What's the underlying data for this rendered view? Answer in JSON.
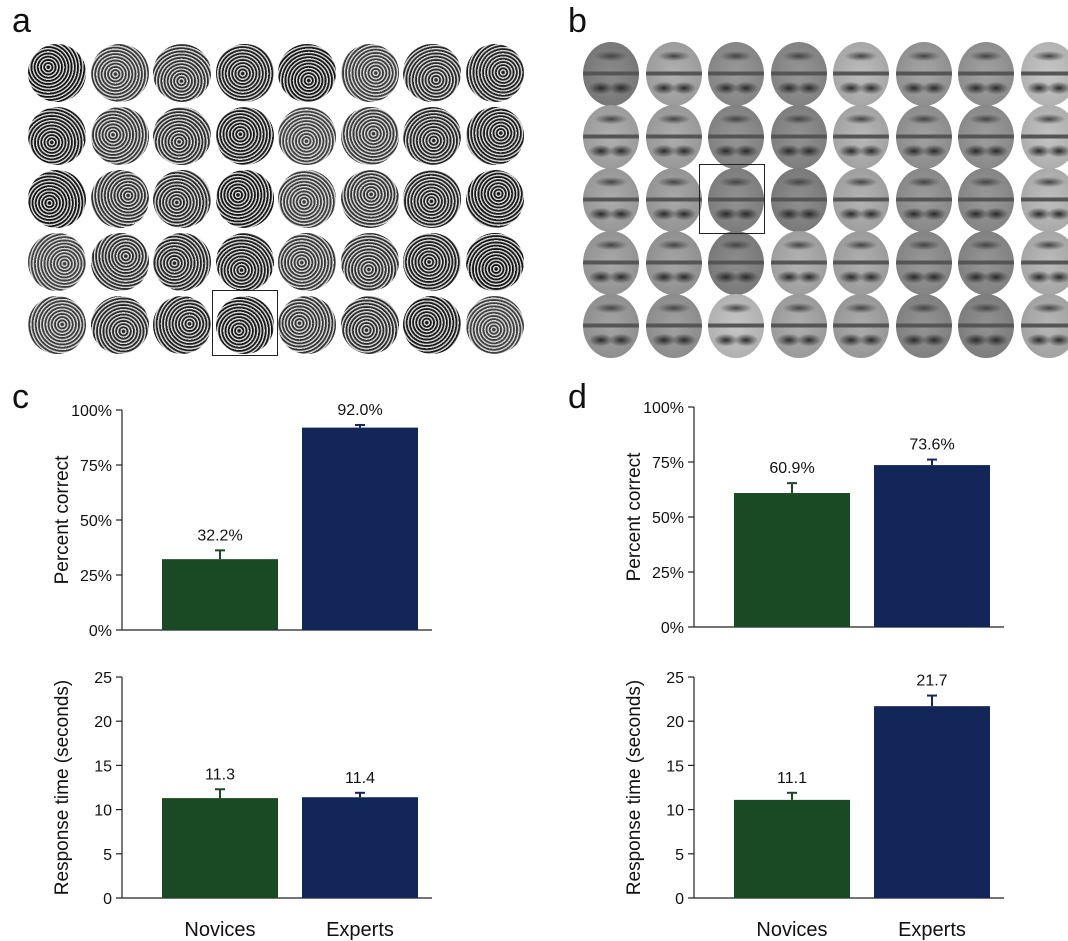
{
  "panels": {
    "a": {
      "letter": "a",
      "rows": 5,
      "cols": 8,
      "selected": {
        "row": 4,
        "col": 3
      }
    },
    "b": {
      "letter": "b",
      "rows": 5,
      "cols": 8,
      "selected": {
        "row": 2,
        "col": 2
      }
    },
    "c": {
      "letter": "c"
    },
    "d": {
      "letter": "d"
    }
  },
  "colors": {
    "novices": "#1a4a24",
    "experts": "#13265a"
  },
  "chart_data": [
    {
      "id": "c-top",
      "type": "bar",
      "categories": [
        "Novices",
        "Experts"
      ],
      "values": [
        32.2,
        92.0
      ],
      "errors": [
        4.0,
        1.2
      ],
      "labels": [
        "32.2%",
        "92.0%"
      ],
      "ylabel": "Percent correct",
      "yticks": [
        "0%",
        "25%",
        "50%",
        "75%",
        "100%"
      ],
      "ylim": [
        0,
        100
      ],
      "show_categories": false
    },
    {
      "id": "c-bottom",
      "type": "bar",
      "categories": [
        "Novices",
        "Experts"
      ],
      "values": [
        11.3,
        11.4
      ],
      "errors": [
        1.0,
        0.5
      ],
      "labels": [
        "11.3",
        "11.4"
      ],
      "ylabel": "Response time (seconds)",
      "yticks": [
        "0",
        "5",
        "10",
        "15",
        "20",
        "25"
      ],
      "ylim": [
        0,
        25
      ],
      "show_categories": true
    },
    {
      "id": "d-top",
      "type": "bar",
      "categories": [
        "Novices",
        "Experts"
      ],
      "values": [
        60.9,
        73.6
      ],
      "errors": [
        4.5,
        2.5
      ],
      "labels": [
        "60.9%",
        "73.6%"
      ],
      "ylabel": "Percent correct",
      "yticks": [
        "0%",
        "25%",
        "50%",
        "75%",
        "100%"
      ],
      "ylim": [
        0,
        100
      ],
      "show_categories": false
    },
    {
      "id": "d-bottom",
      "type": "bar",
      "categories": [
        "Novices",
        "Experts"
      ],
      "values": [
        11.1,
        21.7
      ],
      "errors": [
        0.8,
        1.2
      ],
      "labels": [
        "11.1",
        "21.7"
      ],
      "ylabel": "Response time (seconds)",
      "yticks": [
        "0",
        "5",
        "10",
        "15",
        "20",
        "25"
      ],
      "ylim": [
        0,
        25
      ],
      "show_categories": true
    }
  ]
}
